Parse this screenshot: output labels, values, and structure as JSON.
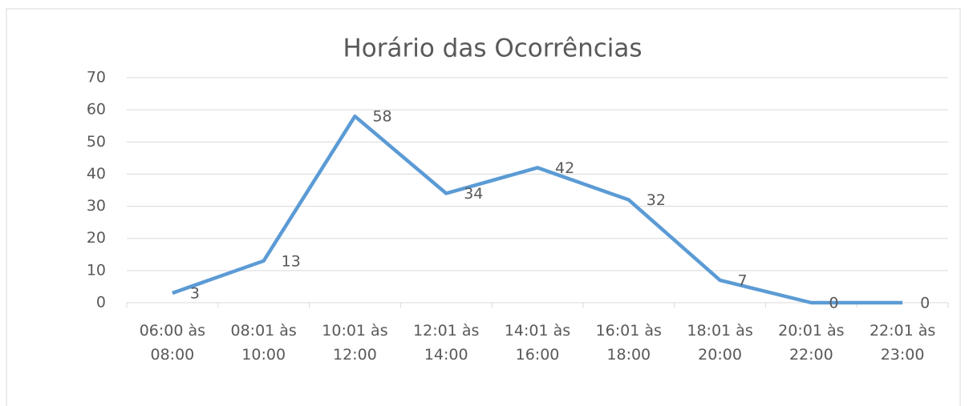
{
  "chart_data": {
    "type": "line",
    "title": "Horário das Ocorrências",
    "categories": [
      "06:00 às 08:00",
      "08:01 às 10:00",
      "10:01 às 12:00",
      "12:01 às 14:00",
      "14:01 às 16:00",
      "16:01 às 18:00",
      "18:01 às 20:00",
      "20:01 às 22:00",
      "22:01 às 23:00"
    ],
    "series": [
      {
        "color": "#5b9bd5",
        "values": [
          3,
          13,
          58,
          34,
          42,
          32,
          7,
          0,
          0
        ]
      }
    ],
    "ylim": [
      0,
      70
    ],
    "yticks": [
      0,
      10,
      20,
      30,
      40,
      50,
      60,
      70
    ],
    "grid": true
  }
}
